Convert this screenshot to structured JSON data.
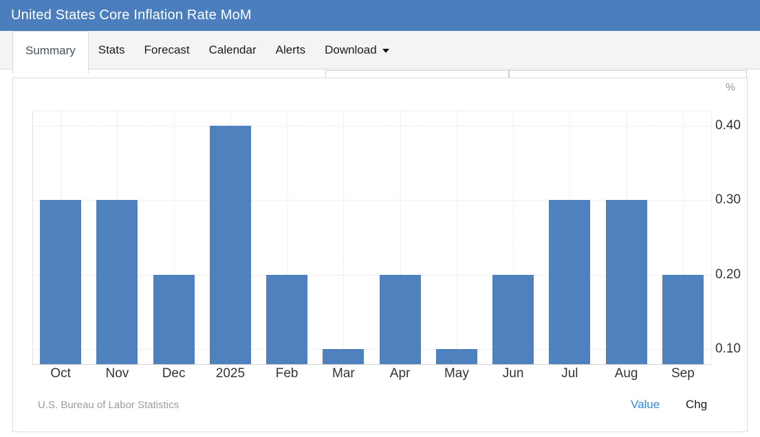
{
  "header": {
    "title": "United States Core Inflation Rate MoM",
    "bg_color": "#4a7ebc"
  },
  "tabs": [
    {
      "label": "Summary",
      "active": true,
      "caret": false
    },
    {
      "label": "Stats",
      "active": false,
      "caret": false
    },
    {
      "label": "Forecast",
      "active": false,
      "caret": false
    },
    {
      "label": "Calendar",
      "active": false,
      "caret": false
    },
    {
      "label": "Alerts",
      "active": false,
      "caret": false
    },
    {
      "label": "Download",
      "active": false,
      "caret": true
    }
  ],
  "chart_data": {
    "type": "bar",
    "title": "United States Core Inflation Rate MoM",
    "unit": "%",
    "categories": [
      "Oct",
      "Nov",
      "Dec",
      "2025",
      "Feb",
      "Mar",
      "Apr",
      "May",
      "Jun",
      "Jul",
      "Aug",
      "Sep"
    ],
    "values": [
      0.3,
      0.3,
      0.2,
      0.4,
      0.2,
      0.1,
      0.2,
      0.1,
      0.2,
      0.3,
      0.3,
      0.2
    ],
    "ylim": [
      0.08,
      0.42
    ],
    "yticks": [
      "0.10",
      "0.20",
      "0.30",
      "0.40"
    ],
    "grid": "dotted",
    "legend_position": "none",
    "bar_color": "#4e81bd",
    "source": "U.S. Bureau of Labor Statistics"
  },
  "footer": {
    "source": "U.S. Bureau of Labor Statistics",
    "toggles": [
      {
        "label": "Value",
        "active": true
      },
      {
        "label": "Chg",
        "active": false
      }
    ]
  },
  "colors": {
    "header_blue": "#4a7ebc",
    "bar_blue": "#4e81bd",
    "link_blue": "#2f86f0",
    "tabbar_bg": "#f4f4f4"
  }
}
